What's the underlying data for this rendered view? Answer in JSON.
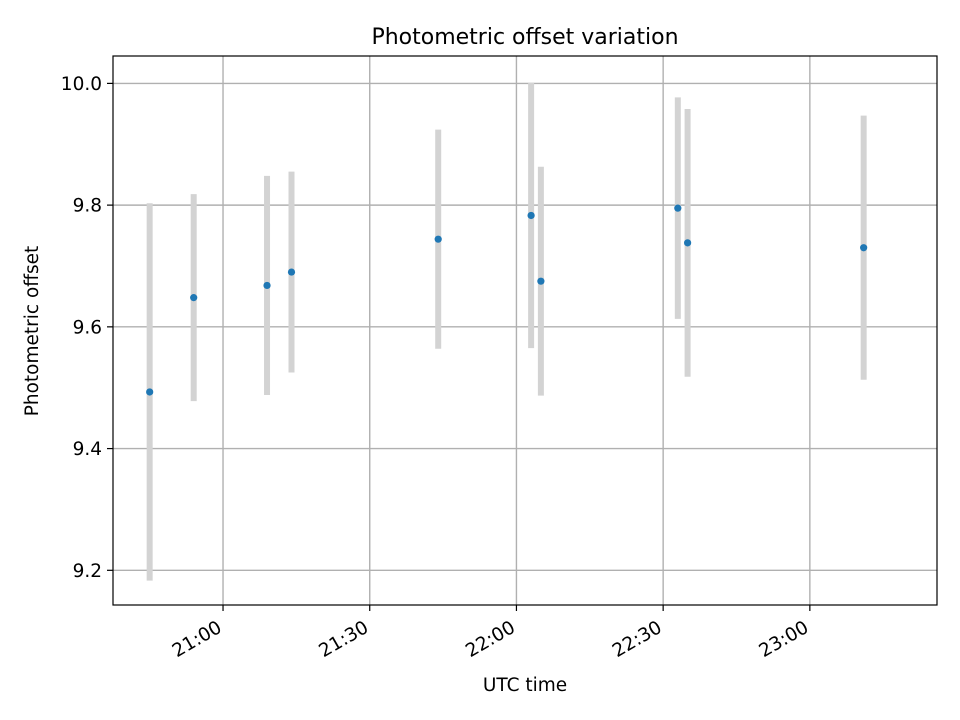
{
  "chart_data": {
    "type": "scatter",
    "title": "Photometric offset variation",
    "xlabel": "UTC time",
    "ylabel": "Photometric offset",
    "grid": true,
    "xlim": [
      "20:37:30",
      "23:26:00"
    ],
    "ylim": [
      9.143,
      10.045
    ],
    "xticks": [
      "21:00",
      "21:30",
      "22:00",
      "22:30",
      "23:00"
    ],
    "yticks": [
      "9.2",
      "9.4",
      "9.6",
      "9.8",
      "10.0"
    ],
    "colors": {
      "point": "#1f77b4",
      "errorbar": "#d3d3d3",
      "grid": "#b0b0b0"
    },
    "points": [
      {
        "x": "20:45",
        "y": 9.493,
        "yerr": 0.31
      },
      {
        "x": "20:54",
        "y": 9.648,
        "yerr": 0.17
      },
      {
        "x": "21:09",
        "y": 9.668,
        "yerr": 0.18
      },
      {
        "x": "21:14",
        "y": 9.69,
        "yerr": 0.165
      },
      {
        "x": "21:44",
        "y": 9.744,
        "yerr": 0.18
      },
      {
        "x": "22:03",
        "y": 9.783,
        "yerr": 0.218
      },
      {
        "x": "22:05",
        "y": 9.675,
        "yerr": 0.188
      },
      {
        "x": "22:33",
        "y": 9.795,
        "yerr": 0.182
      },
      {
        "x": "22:35",
        "y": 9.738,
        "yerr": 0.22
      },
      {
        "x": "23:11",
        "y": 9.73,
        "yerr": 0.217
      }
    ]
  }
}
